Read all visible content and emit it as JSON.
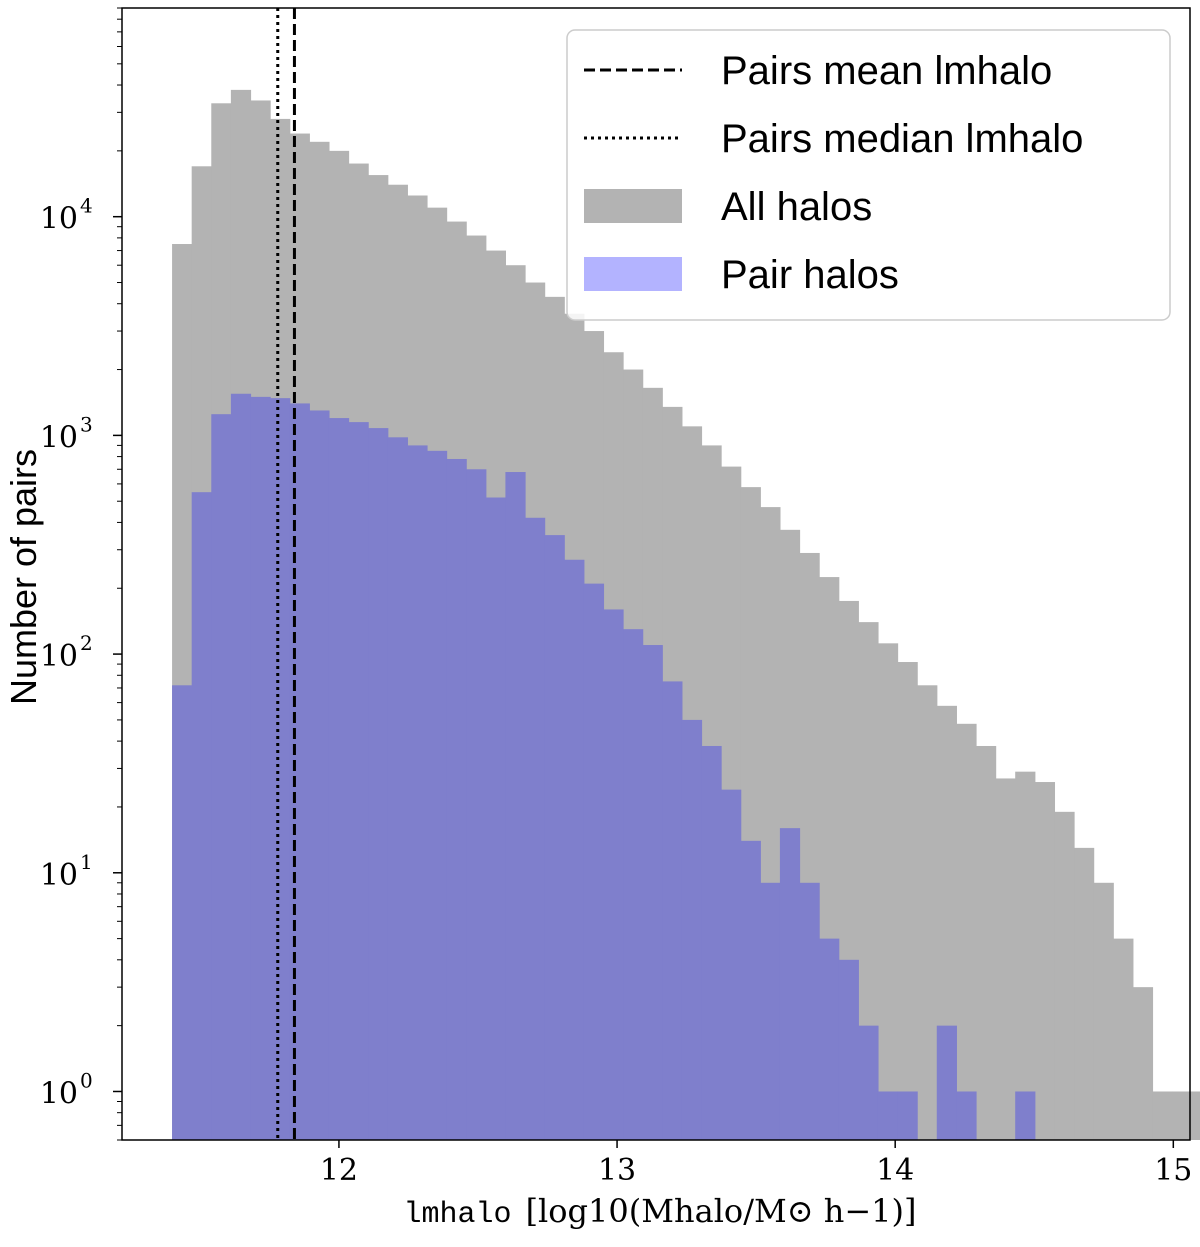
{
  "chart_data": {
    "type": "histogram",
    "xlabel": {
      "name": "lmhalo",
      "unit": "[log10(Mhalo/M⊙ h−1)]"
    },
    "ylabel": "Number of pairs",
    "yscale": "log",
    "xlim": [
      11.22,
      15.06
    ],
    "ylim": [
      0.6,
      90000
    ],
    "x_ticks": [
      "12",
      "13",
      "14",
      "15"
    ],
    "y_ticks": [
      {
        "base": "10",
        "exp": "0",
        "value": 1
      },
      {
        "base": "10",
        "exp": "1",
        "value": 10
      },
      {
        "base": "10",
        "exp": "2",
        "value": 100
      },
      {
        "base": "10",
        "exp": "3",
        "value": 1000
      },
      {
        "base": "10",
        "exp": "4",
        "value": 10000
      }
    ],
    "bin_start": 11.4,
    "bin_width": 0.0705,
    "series": [
      {
        "name": "All halos",
        "color": "#b3b3b3",
        "values": [
          7500,
          17000,
          33000,
          38000,
          34000,
          28000,
          24000,
          22000,
          20000,
          17500,
          15500,
          14000,
          12500,
          11000,
          9500,
          8200,
          7000,
          6000,
          5000,
          4300,
          3600,
          3000,
          2400,
          2000,
          1650,
          1350,
          1100,
          900,
          720,
          580,
          470,
          370,
          290,
          225,
          175,
          140,
          112,
          92,
          72,
          58,
          48,
          38,
          27,
          29,
          26,
          19,
          13,
          9,
          5,
          3,
          1,
          1,
          1,
          2
        ]
      },
      {
        "name": "Pair halos",
        "color": "#7f7fcc",
        "values": [
          72,
          550,
          1250,
          1550,
          1500,
          1480,
          1400,
          1300,
          1200,
          1150,
          1080,
          980,
          900,
          850,
          780,
          700,
          520,
          680,
          420,
          350,
          270,
          210,
          160,
          130,
          110,
          75,
          50,
          38,
          24,
          14,
          9,
          16,
          9,
          5,
          4,
          2,
          1,
          1,
          0,
          2,
          1,
          0,
          0,
          1
        ]
      }
    ],
    "vlines": [
      {
        "name": "Pairs mean lmhalo",
        "x": 11.84,
        "style": "dashed"
      },
      {
        "name": "Pairs median lmhalo",
        "x": 11.78,
        "style": "dotted"
      }
    ],
    "legend": {
      "position": "top-right",
      "entries": [
        {
          "label": "Pairs mean lmhalo",
          "kind": "dashed-line"
        },
        {
          "label": "Pairs median lmhalo",
          "kind": "dotted-line"
        },
        {
          "label": "All halos",
          "kind": "patch",
          "color": "#b3b3b3"
        },
        {
          "label": "Pair halos",
          "kind": "patch",
          "color": "#b3b3ff"
        }
      ]
    }
  }
}
